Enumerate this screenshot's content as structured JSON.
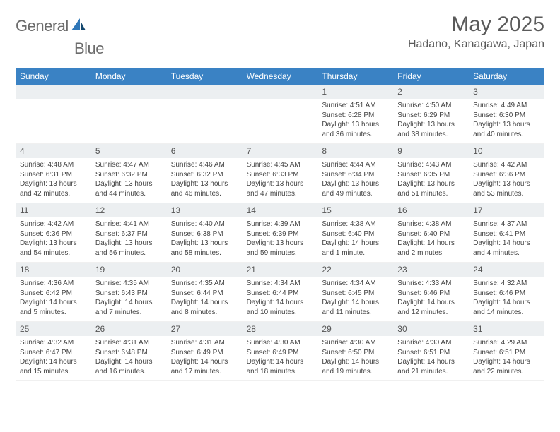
{
  "logo": {
    "text1": "General",
    "text2": "Blue"
  },
  "title": "May 2025",
  "location": "Hadano, Kanagawa, Japan",
  "colors": {
    "header_bg": "#3a82c4",
    "header_text": "#ffffff",
    "daynum_bg": "#eceff1",
    "page_bg": "#ffffff",
    "logo_gray": "#6b6b6b",
    "logo_blue": "#2f77b8",
    "title_color": "#5a5a5a"
  },
  "day_labels": [
    "Sunday",
    "Monday",
    "Tuesday",
    "Wednesday",
    "Thursday",
    "Friday",
    "Saturday"
  ],
  "weeks": [
    {
      "nums": [
        "",
        "",
        "",
        "",
        "1",
        "2",
        "3"
      ],
      "details": [
        null,
        null,
        null,
        null,
        {
          "sunrise": "Sunrise: 4:51 AM",
          "sunset": "Sunset: 6:28 PM",
          "daylight1": "Daylight: 13 hours",
          "daylight2": "and 36 minutes."
        },
        {
          "sunrise": "Sunrise: 4:50 AM",
          "sunset": "Sunset: 6:29 PM",
          "daylight1": "Daylight: 13 hours",
          "daylight2": "and 38 minutes."
        },
        {
          "sunrise": "Sunrise: 4:49 AM",
          "sunset": "Sunset: 6:30 PM",
          "daylight1": "Daylight: 13 hours",
          "daylight2": "and 40 minutes."
        }
      ]
    },
    {
      "nums": [
        "4",
        "5",
        "6",
        "7",
        "8",
        "9",
        "10"
      ],
      "details": [
        {
          "sunrise": "Sunrise: 4:48 AM",
          "sunset": "Sunset: 6:31 PM",
          "daylight1": "Daylight: 13 hours",
          "daylight2": "and 42 minutes."
        },
        {
          "sunrise": "Sunrise: 4:47 AM",
          "sunset": "Sunset: 6:32 PM",
          "daylight1": "Daylight: 13 hours",
          "daylight2": "and 44 minutes."
        },
        {
          "sunrise": "Sunrise: 4:46 AM",
          "sunset": "Sunset: 6:32 PM",
          "daylight1": "Daylight: 13 hours",
          "daylight2": "and 46 minutes."
        },
        {
          "sunrise": "Sunrise: 4:45 AM",
          "sunset": "Sunset: 6:33 PM",
          "daylight1": "Daylight: 13 hours",
          "daylight2": "and 47 minutes."
        },
        {
          "sunrise": "Sunrise: 4:44 AM",
          "sunset": "Sunset: 6:34 PM",
          "daylight1": "Daylight: 13 hours",
          "daylight2": "and 49 minutes."
        },
        {
          "sunrise": "Sunrise: 4:43 AM",
          "sunset": "Sunset: 6:35 PM",
          "daylight1": "Daylight: 13 hours",
          "daylight2": "and 51 minutes."
        },
        {
          "sunrise": "Sunrise: 4:42 AM",
          "sunset": "Sunset: 6:36 PM",
          "daylight1": "Daylight: 13 hours",
          "daylight2": "and 53 minutes."
        }
      ]
    },
    {
      "nums": [
        "11",
        "12",
        "13",
        "14",
        "15",
        "16",
        "17"
      ],
      "details": [
        {
          "sunrise": "Sunrise: 4:42 AM",
          "sunset": "Sunset: 6:36 PM",
          "daylight1": "Daylight: 13 hours",
          "daylight2": "and 54 minutes."
        },
        {
          "sunrise": "Sunrise: 4:41 AM",
          "sunset": "Sunset: 6:37 PM",
          "daylight1": "Daylight: 13 hours",
          "daylight2": "and 56 minutes."
        },
        {
          "sunrise": "Sunrise: 4:40 AM",
          "sunset": "Sunset: 6:38 PM",
          "daylight1": "Daylight: 13 hours",
          "daylight2": "and 58 minutes."
        },
        {
          "sunrise": "Sunrise: 4:39 AM",
          "sunset": "Sunset: 6:39 PM",
          "daylight1": "Daylight: 13 hours",
          "daylight2": "and 59 minutes."
        },
        {
          "sunrise": "Sunrise: 4:38 AM",
          "sunset": "Sunset: 6:40 PM",
          "daylight1": "Daylight: 14 hours",
          "daylight2": "and 1 minute."
        },
        {
          "sunrise": "Sunrise: 4:38 AM",
          "sunset": "Sunset: 6:40 PM",
          "daylight1": "Daylight: 14 hours",
          "daylight2": "and 2 minutes."
        },
        {
          "sunrise": "Sunrise: 4:37 AM",
          "sunset": "Sunset: 6:41 PM",
          "daylight1": "Daylight: 14 hours",
          "daylight2": "and 4 minutes."
        }
      ]
    },
    {
      "nums": [
        "18",
        "19",
        "20",
        "21",
        "22",
        "23",
        "24"
      ],
      "details": [
        {
          "sunrise": "Sunrise: 4:36 AM",
          "sunset": "Sunset: 6:42 PM",
          "daylight1": "Daylight: 14 hours",
          "daylight2": "and 5 minutes."
        },
        {
          "sunrise": "Sunrise: 4:35 AM",
          "sunset": "Sunset: 6:43 PM",
          "daylight1": "Daylight: 14 hours",
          "daylight2": "and 7 minutes."
        },
        {
          "sunrise": "Sunrise: 4:35 AM",
          "sunset": "Sunset: 6:44 PM",
          "daylight1": "Daylight: 14 hours",
          "daylight2": "and 8 minutes."
        },
        {
          "sunrise": "Sunrise: 4:34 AM",
          "sunset": "Sunset: 6:44 PM",
          "daylight1": "Daylight: 14 hours",
          "daylight2": "and 10 minutes."
        },
        {
          "sunrise": "Sunrise: 4:34 AM",
          "sunset": "Sunset: 6:45 PM",
          "daylight1": "Daylight: 14 hours",
          "daylight2": "and 11 minutes."
        },
        {
          "sunrise": "Sunrise: 4:33 AM",
          "sunset": "Sunset: 6:46 PM",
          "daylight1": "Daylight: 14 hours",
          "daylight2": "and 12 minutes."
        },
        {
          "sunrise": "Sunrise: 4:32 AM",
          "sunset": "Sunset: 6:46 PM",
          "daylight1": "Daylight: 14 hours",
          "daylight2": "and 14 minutes."
        }
      ]
    },
    {
      "nums": [
        "25",
        "26",
        "27",
        "28",
        "29",
        "30",
        "31"
      ],
      "details": [
        {
          "sunrise": "Sunrise: 4:32 AM",
          "sunset": "Sunset: 6:47 PM",
          "daylight1": "Daylight: 14 hours",
          "daylight2": "and 15 minutes."
        },
        {
          "sunrise": "Sunrise: 4:31 AM",
          "sunset": "Sunset: 6:48 PM",
          "daylight1": "Daylight: 14 hours",
          "daylight2": "and 16 minutes."
        },
        {
          "sunrise": "Sunrise: 4:31 AM",
          "sunset": "Sunset: 6:49 PM",
          "daylight1": "Daylight: 14 hours",
          "daylight2": "and 17 minutes."
        },
        {
          "sunrise": "Sunrise: 4:30 AM",
          "sunset": "Sunset: 6:49 PM",
          "daylight1": "Daylight: 14 hours",
          "daylight2": "and 18 minutes."
        },
        {
          "sunrise": "Sunrise: 4:30 AM",
          "sunset": "Sunset: 6:50 PM",
          "daylight1": "Daylight: 14 hours",
          "daylight2": "and 19 minutes."
        },
        {
          "sunrise": "Sunrise: 4:30 AM",
          "sunset": "Sunset: 6:51 PM",
          "daylight1": "Daylight: 14 hours",
          "daylight2": "and 21 minutes."
        },
        {
          "sunrise": "Sunrise: 4:29 AM",
          "sunset": "Sunset: 6:51 PM",
          "daylight1": "Daylight: 14 hours",
          "daylight2": "and 22 minutes."
        }
      ]
    }
  ]
}
